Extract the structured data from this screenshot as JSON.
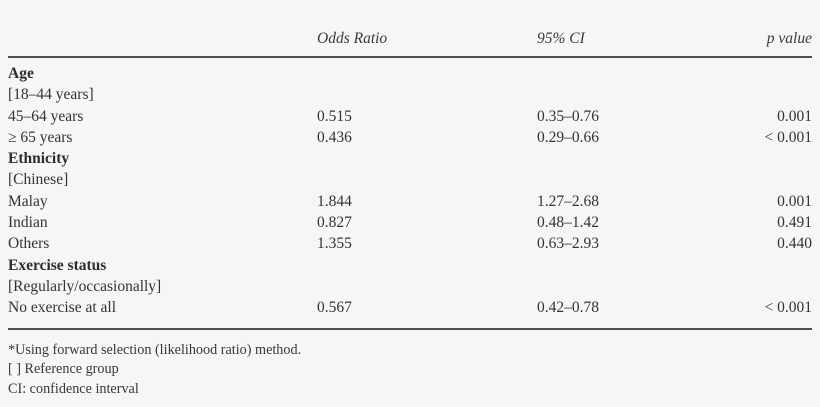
{
  "table": {
    "headers": {
      "label": "",
      "odds_ratio": "Odds Ratio",
      "ci": "95% CI",
      "p_value": "p value"
    },
    "rows": [
      {
        "label": "Age",
        "type": "category",
        "or": "",
        "ci": "",
        "p": ""
      },
      {
        "label": "[18–44 years]",
        "type": "reference",
        "or": "",
        "ci": "",
        "p": ""
      },
      {
        "label": "45–64 years",
        "type": "data",
        "or": "0.515",
        "ci": "0.35–0.76",
        "p": "0.001"
      },
      {
        "label": "≥ 65 years",
        "type": "data",
        "or": "0.436",
        "ci": "0.29–0.66",
        "p": "< 0.001"
      },
      {
        "label": "Ethnicity",
        "type": "category",
        "or": "",
        "ci": "",
        "p": ""
      },
      {
        "label": "[Chinese]",
        "type": "reference",
        "or": "",
        "ci": "",
        "p": ""
      },
      {
        "label": "Malay",
        "type": "data",
        "or": "1.844",
        "ci": "1.27–2.68",
        "p": "0.001"
      },
      {
        "label": "Indian",
        "type": "data",
        "or": "0.827",
        "ci": "0.48–1.42",
        "p": "0.491"
      },
      {
        "label": "Others",
        "type": "data",
        "or": "1.355",
        "ci": "0.63–2.93",
        "p": "0.440"
      },
      {
        "label": "Exercise status",
        "type": "category",
        "or": "",
        "ci": "",
        "p": ""
      },
      {
        "label": "[Regularly/occasionally]",
        "type": "reference",
        "or": "",
        "ci": "",
        "p": ""
      },
      {
        "label": "No exercise at all",
        "type": "data",
        "or": "0.567",
        "ci": "0.42–0.78",
        "p": "< 0.001"
      }
    ],
    "footnotes": [
      "*Using forward selection (likelihood ratio) method.",
      "[ ] Reference group",
      "CI: confidence interval"
    ]
  },
  "colors": {
    "background": "#f6f6f4",
    "text": "#333333",
    "rule": "#4f4f4f"
  }
}
